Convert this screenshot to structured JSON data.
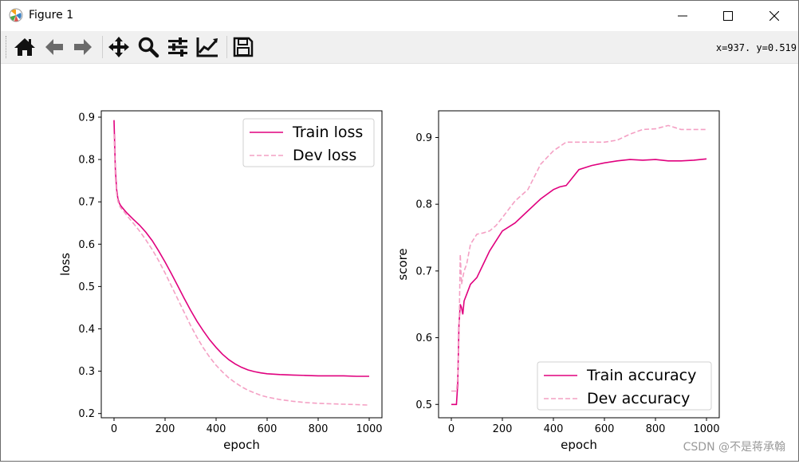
{
  "window": {
    "title": "Figure 1",
    "coords": "x=937. y=0.519",
    "watermark": "CSDN @不是蒋承翰"
  },
  "toolbar": {
    "items": [
      "home-icon",
      "back-arrow-icon",
      "forward-arrow-icon",
      "pan-icon",
      "zoom-icon",
      "configure-subplots-icon",
      "edit-axis-icon",
      "save-icon"
    ]
  },
  "colors": {
    "train": "#e0007e",
    "dev": "#f4a0c4",
    "axis": "#000000"
  },
  "chart_data": [
    {
      "type": "line",
      "xlabel": "epoch",
      "ylabel": "loss",
      "xlim": [
        -50,
        1050
      ],
      "ylim": [
        0.19,
        0.915
      ],
      "xticks": [
        0,
        200,
        400,
        600,
        800,
        1000
      ],
      "yticks": [
        0.2,
        0.3,
        0.4,
        0.5,
        0.6,
        0.7,
        0.8,
        0.9
      ],
      "legend_position": "top-right",
      "series": [
        {
          "name": "Train loss",
          "style": "solid",
          "x": [
            0,
            5,
            10,
            15,
            20,
            25,
            30,
            40,
            50,
            75,
            100,
            125,
            150,
            175,
            200,
            225,
            250,
            275,
            300,
            325,
            350,
            375,
            400,
            425,
            450,
            475,
            500,
            525,
            550,
            575,
            600,
            650,
            700,
            750,
            800,
            850,
            900,
            950,
            1000
          ],
          "y": [
            0.893,
            0.78,
            0.73,
            0.708,
            0.698,
            0.692,
            0.688,
            0.681,
            0.674,
            0.659,
            0.645,
            0.628,
            0.608,
            0.584,
            0.558,
            0.53,
            0.501,
            0.472,
            0.444,
            0.418,
            0.395,
            0.374,
            0.356,
            0.34,
            0.327,
            0.317,
            0.309,
            0.303,
            0.299,
            0.296,
            0.294,
            0.292,
            0.291,
            0.29,
            0.289,
            0.289,
            0.289,
            0.288,
            0.288
          ]
        },
        {
          "name": "Dev loss",
          "style": "dashed",
          "x": [
            0,
            5,
            10,
            15,
            20,
            25,
            30,
            40,
            50,
            75,
            100,
            125,
            150,
            175,
            200,
            225,
            250,
            275,
            300,
            325,
            350,
            375,
            400,
            425,
            450,
            475,
            500,
            525,
            550,
            575,
            600,
            650,
            700,
            750,
            800,
            850,
            900,
            950,
            1000
          ],
          "y": [
            0.86,
            0.76,
            0.72,
            0.702,
            0.693,
            0.687,
            0.683,
            0.676,
            0.668,
            0.65,
            0.631,
            0.61,
            0.587,
            0.561,
            0.532,
            0.501,
            0.47,
            0.439,
            0.408,
            0.38,
            0.355,
            0.333,
            0.314,
            0.298,
            0.284,
            0.273,
            0.263,
            0.255,
            0.249,
            0.243,
            0.239,
            0.233,
            0.229,
            0.226,
            0.224,
            0.223,
            0.222,
            0.221,
            0.22
          ]
        }
      ]
    },
    {
      "type": "line",
      "xlabel": "epoch",
      "ylabel": "score",
      "xlim": [
        -50,
        1050
      ],
      "ylim": [
        0.48,
        0.94
      ],
      "xticks": [
        0,
        200,
        400,
        600,
        800,
        1000
      ],
      "yticks": [
        0.5,
        0.6,
        0.7,
        0.8,
        0.9
      ],
      "legend_position": "bottom-right",
      "series": [
        {
          "name": "Train accuracy",
          "style": "solid",
          "x": [
            0,
            10,
            20,
            25,
            30,
            35,
            40,
            45,
            50,
            60,
            75,
            100,
            125,
            150,
            175,
            200,
            250,
            300,
            350,
            400,
            425,
            450,
            475,
            500,
            550,
            600,
            650,
            700,
            750,
            800,
            850,
            900,
            950,
            1000
          ],
          "y": [
            0.5,
            0.5,
            0.5,
            0.53,
            0.62,
            0.65,
            0.645,
            0.635,
            0.655,
            0.665,
            0.68,
            0.69,
            0.71,
            0.73,
            0.745,
            0.76,
            0.772,
            0.79,
            0.808,
            0.822,
            0.826,
            0.828,
            0.84,
            0.852,
            0.858,
            0.862,
            0.865,
            0.867,
            0.866,
            0.867,
            0.865,
            0.865,
            0.866,
            0.868
          ]
        },
        {
          "name": "Dev accuracy",
          "style": "dashed",
          "x": [
            0,
            20,
            25,
            30,
            35,
            40,
            45,
            50,
            60,
            75,
            100,
            125,
            150,
            175,
            200,
            250,
            300,
            350,
            400,
            450,
            500,
            550,
            600,
            650,
            700,
            750,
            800,
            850,
            900,
            950,
            1000
          ],
          "y": [
            0.52,
            0.52,
            0.54,
            0.6,
            0.725,
            0.68,
            0.69,
            0.7,
            0.71,
            0.74,
            0.755,
            0.757,
            0.76,
            0.768,
            0.78,
            0.805,
            0.822,
            0.86,
            0.88,
            0.893,
            0.893,
            0.893,
            0.893,
            0.896,
            0.905,
            0.912,
            0.913,
            0.918,
            0.912,
            0.912,
            0.912
          ]
        }
      ]
    }
  ]
}
